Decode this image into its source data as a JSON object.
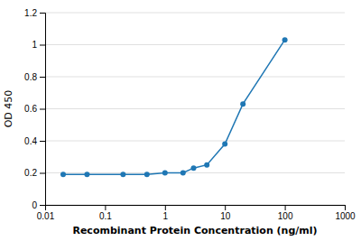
{
  "chart_data": {
    "type": "line",
    "x": [
      0.02,
      0.05,
      0.2,
      0.5,
      1.0,
      2.0,
      3.0,
      5.0,
      10.0,
      20.0,
      100.0
    ],
    "values": [
      0.19,
      0.19,
      0.19,
      0.19,
      0.2,
      0.2,
      0.23,
      0.25,
      0.38,
      0.63,
      1.03
    ],
    "xlabel": "Recombinant Protein Concentration (ng/ml)",
    "ylabel": "OD 450",
    "xlim": [
      0.01,
      1000
    ],
    "ylim": [
      0,
      1.2
    ],
    "xticks": [
      0.01,
      0.1,
      1,
      10,
      100,
      1000
    ],
    "yticks": [
      0,
      0.2,
      0.4,
      0.6,
      0.8,
      1,
      1.2
    ],
    "log": "x",
    "grid": "y",
    "marker": "circle"
  }
}
